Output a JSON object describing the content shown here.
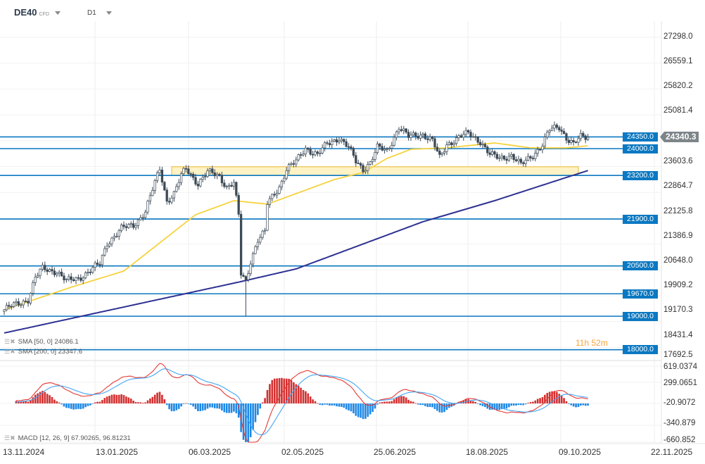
{
  "header": {
    "symbol": "DE40",
    "symbol_type": "CFD",
    "timeframe": "D1"
  },
  "price_axis": [
    "27298.0",
    "26559.1",
    "25820.2",
    "25081.4",
    "23603.6",
    "22864.7",
    "22125.8",
    "21386.9",
    "20648.0",
    "19909.2",
    "19170.3",
    "18431.4",
    "17692.5"
  ],
  "macd_axis": [
    "619.0374",
    "299.0651",
    "-20.9072",
    "-340.879",
    "-660.852"
  ],
  "time_axis": [
    "13.11.2024",
    "13.01.2025",
    "06.03.2025",
    "02.05.2025",
    "25.06.2025",
    "18.08.2025",
    "09.10.2025",
    "22.11.2025"
  ],
  "current_price": "24340.3",
  "timer": "11h 52m",
  "levels": [
    "24350.0",
    "24000.0",
    "23200.0",
    "21900.0",
    "20500.0",
    "19670.0",
    "19000.0",
    "18000.0"
  ],
  "legend": {
    "sma50": "SMA [50, 0] 24086.1",
    "sma200": "SMA [200, 0] 23347.6",
    "macd": "MACD [12, 26, 9] 67.90265, 96.81231"
  },
  "colors": {
    "level": "#0a78c2",
    "sma50": "#f7d23e",
    "sma200": "#2e3192",
    "zone": "#fff2c4",
    "up": "#d32f2f",
    "down": "#1e88e5"
  },
  "chart_data": {
    "type": "candlestick",
    "bars": 245,
    "close_keypoints": [
      [
        0,
        19194
      ],
      [
        10,
        19509
      ],
      [
        13,
        20139
      ],
      [
        16,
        20412
      ],
      [
        22,
        20349
      ],
      [
        26,
        20034
      ],
      [
        31,
        20139
      ],
      [
        37,
        20412
      ],
      [
        40,
        20559
      ],
      [
        43,
        21189
      ],
      [
        49,
        21609
      ],
      [
        54,
        21714
      ],
      [
        59,
        22134
      ],
      [
        62,
        22764
      ],
      [
        65,
        23394
      ],
      [
        68,
        22449
      ],
      [
        71,
        22659
      ],
      [
        74,
        23184
      ],
      [
        76,
        23394
      ],
      [
        81,
        22974
      ],
      [
        85,
        23289
      ],
      [
        90,
        23184
      ],
      [
        93,
        22869
      ],
      [
        96,
        22974
      ],
      [
        98,
        21990
      ],
      [
        99,
        20244
      ],
      [
        101,
        20034
      ],
      [
        103,
        20664
      ],
      [
        106,
        21294
      ],
      [
        109,
        21504
      ],
      [
        110,
        22344
      ],
      [
        115,
        22869
      ],
      [
        118,
        23394
      ],
      [
        122,
        23604
      ],
      [
        126,
        24024
      ],
      [
        131,
        23814
      ],
      [
        135,
        24129
      ],
      [
        140,
        24339
      ],
      [
        144,
        24024
      ],
      [
        147,
        23604
      ],
      [
        150,
        23394
      ],
      [
        153,
        23604
      ],
      [
        156,
        24024
      ],
      [
        160,
        23919
      ],
      [
        165,
        24654
      ],
      [
        169,
        24339
      ],
      [
        175,
        24444
      ],
      [
        179,
        24234
      ],
      [
        182,
        23709
      ],
      [
        185,
        24129
      ],
      [
        190,
        24339
      ],
      [
        194,
        24444
      ],
      [
        199,
        24234
      ],
      [
        203,
        23814
      ],
      [
        207,
        23709
      ],
      [
        212,
        23814
      ],
      [
        216,
        23499
      ],
      [
        221,
        23814
      ],
      [
        225,
        24129
      ],
      [
        228,
        24549
      ],
      [
        232,
        24654
      ],
      [
        235,
        24339
      ],
      [
        238,
        24129
      ],
      [
        241,
        24339
      ],
      [
        244,
        24340
      ]
    ],
    "sma50_keypoints": [
      [
        0,
        19194
      ],
      [
        28,
        19866
      ],
      [
        50,
        20349
      ],
      [
        65,
        21189
      ],
      [
        80,
        22029
      ],
      [
        96,
        22449
      ],
      [
        110,
        22344
      ],
      [
        122,
        22659
      ],
      [
        138,
        23079
      ],
      [
        150,
        23289
      ],
      [
        160,
        23709
      ],
      [
        170,
        23982
      ],
      [
        185,
        24024
      ],
      [
        205,
        24171
      ],
      [
        220,
        24024
      ],
      [
        235,
        24024
      ],
      [
        244,
        24086
      ]
    ],
    "sma200_keypoints": [
      [
        0,
        18500
      ],
      [
        99,
        20034
      ],
      [
        122,
        20412
      ],
      [
        175,
        21819
      ],
      [
        205,
        22449
      ],
      [
        244,
        23348
      ]
    ],
    "levels": [
      24350,
      24000,
      23200,
      21900,
      20500,
      19670,
      19000,
      18000
    ],
    "zone": [
      23200,
      23460
    ],
    "price_range": [
      17692.5,
      27298
    ],
    "macd": {
      "fast": 12,
      "slow": 26,
      "signal": 9,
      "range": [
        -660.852,
        619.0374
      ]
    }
  }
}
